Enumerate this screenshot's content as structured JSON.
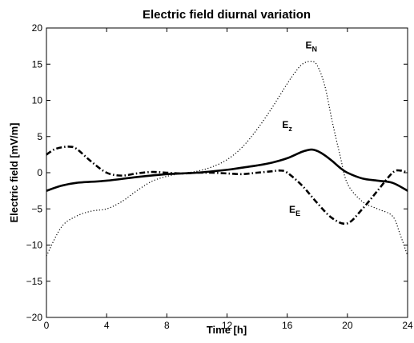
{
  "chart_data": {
    "type": "line",
    "title": "Electric field diurnal variation",
    "xlabel": "Time [h]",
    "ylabel": "Electric field [mV/m]",
    "xlim": [
      0,
      24
    ],
    "ylim": [
      -20,
      20
    ],
    "xticks": [
      0,
      4,
      8,
      12,
      16,
      20,
      24
    ],
    "yticks": [
      -20,
      -15,
      -10,
      -5,
      0,
      5,
      10,
      15,
      20
    ],
    "grid": false,
    "series": [
      {
        "name": "E_N",
        "style": "dotted",
        "x": [
          0,
          1,
          2,
          3,
          4,
          5,
          6,
          7,
          8,
          9,
          10,
          11,
          12,
          13,
          14,
          15,
          16,
          16.5,
          17,
          17.6,
          18,
          18.5,
          19,
          19.5,
          20,
          21,
          22,
          23,
          23.5,
          24
        ],
        "y": [
          -11.5,
          -7.5,
          -6,
          -5.3,
          -5,
          -4,
          -2.5,
          -1.2,
          -0.5,
          -0.1,
          0.2,
          0.8,
          1.8,
          3.5,
          6,
          9,
          12.3,
          13.8,
          15,
          15.4,
          14.8,
          12,
          7,
          2.5,
          -1.5,
          -4,
          -5,
          -6,
          -8.5,
          -11.5
        ]
      },
      {
        "name": "E_z",
        "style": "solid",
        "x": [
          0,
          1,
          2,
          4,
          6,
          8,
          10,
          12,
          13,
          14,
          15,
          16,
          17,
          17.6,
          18,
          18.5,
          19,
          19.5,
          20,
          21,
          22,
          23,
          24
        ],
        "y": [
          -2.5,
          -1.8,
          -1.4,
          -1.1,
          -0.6,
          -0.2,
          0,
          0.4,
          0.7,
          1,
          1.4,
          2,
          2.9,
          3.2,
          3,
          2.4,
          1.6,
          0.7,
          0,
          -0.8,
          -1.1,
          -1.4,
          -2.5
        ]
      },
      {
        "name": "E_E",
        "style": "dash-dot",
        "x": [
          0,
          0.5,
          1,
          1.5,
          2,
          3,
          4,
          5,
          6,
          7,
          8,
          9,
          10,
          11,
          12,
          13,
          14,
          15,
          15.5,
          16,
          17,
          18,
          19,
          20,
          21,
          22,
          23,
          23.5,
          24
        ],
        "y": [
          2.5,
          3.2,
          3.5,
          3.6,
          3.3,
          1.5,
          0,
          -0.4,
          -0.1,
          0.1,
          0,
          -0.1,
          0,
          0,
          -0.1,
          -0.2,
          0,
          0.2,
          0.3,
          0,
          -1.8,
          -4.2,
          -6.3,
          -7,
          -5,
          -2.5,
          0,
          0.3,
          0
        ]
      }
    ],
    "annotations": [
      {
        "base": "E",
        "sub": "N",
        "x": 17.6,
        "y": 17.2
      },
      {
        "base": "E",
        "sub": "z",
        "x": 16,
        "y": 6.2
      },
      {
        "base": "E",
        "sub": "E",
        "x": 16.5,
        "y": -5.5
      }
    ]
  }
}
